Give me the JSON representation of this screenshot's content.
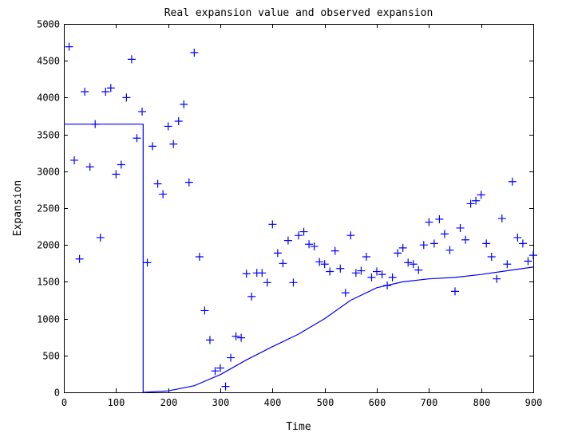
{
  "chart_data": {
    "type": "scatter",
    "title": "Real expansion value and observed expansion",
    "xlabel": "Time",
    "ylabel": "Expansion",
    "xlim": [
      0,
      900
    ],
    "ylim": [
      0,
      5000
    ],
    "x_ticks": [
      0,
      100,
      200,
      300,
      400,
      500,
      600,
      700,
      800,
      900
    ],
    "y_ticks": [
      0,
      500,
      1000,
      1500,
      2000,
      2500,
      3000,
      3500,
      4000,
      4500,
      5000
    ],
    "x_tick_labels": [
      "0",
      "100",
      "200",
      "300",
      "400",
      "500",
      "600",
      "700",
      "800",
      "900"
    ],
    "y_tick_labels": [
      "0",
      "500",
      "1000",
      "1500",
      "2000",
      "2500",
      "3000",
      "3500",
      "4000",
      "4500",
      "5000"
    ],
    "grid": false,
    "color": "#0000ff",
    "series": [
      {
        "kind": "markers",
        "marker": "plus",
        "points": [
          [
            10,
            4690
          ],
          [
            20,
            3150
          ],
          [
            30,
            1810
          ],
          [
            40,
            4080
          ],
          [
            50,
            3060
          ],
          [
            60,
            3640
          ],
          [
            70,
            2100
          ],
          [
            80,
            4080
          ],
          [
            90,
            4130
          ],
          [
            100,
            2960
          ],
          [
            110,
            3090
          ],
          [
            120,
            4000
          ],
          [
            130,
            4520
          ],
          [
            140,
            3450
          ],
          [
            150,
            3810
          ],
          [
            160,
            1760
          ],
          [
            170,
            3340
          ],
          [
            180,
            2830
          ],
          [
            190,
            2690
          ],
          [
            200,
            3610
          ],
          [
            210,
            3370
          ],
          [
            220,
            3680
          ],
          [
            230,
            3910
          ],
          [
            240,
            2850
          ],
          [
            250,
            4610
          ],
          [
            260,
            1840
          ],
          [
            270,
            1110
          ],
          [
            280,
            710
          ],
          [
            290,
            290
          ],
          [
            300,
            330
          ],
          [
            310,
            80
          ],
          [
            320,
            470
          ],
          [
            330,
            760
          ],
          [
            340,
            740
          ],
          [
            350,
            1610
          ],
          [
            360,
            1300
          ],
          [
            370,
            1620
          ],
          [
            380,
            1620
          ],
          [
            390,
            1490
          ],
          [
            400,
            2280
          ],
          [
            410,
            1890
          ],
          [
            420,
            1750
          ],
          [
            430,
            2060
          ],
          [
            440,
            1490
          ],
          [
            450,
            2130
          ],
          [
            460,
            2180
          ],
          [
            470,
            2010
          ],
          [
            480,
            1980
          ],
          [
            490,
            1770
          ],
          [
            500,
            1740
          ],
          [
            510,
            1640
          ],
          [
            520,
            1920
          ],
          [
            530,
            1680
          ],
          [
            540,
            1350
          ],
          [
            550,
            2130
          ],
          [
            560,
            1620
          ],
          [
            570,
            1650
          ],
          [
            580,
            1840
          ],
          [
            590,
            1560
          ],
          [
            600,
            1640
          ],
          [
            610,
            1600
          ],
          [
            620,
            1450
          ],
          [
            630,
            1560
          ],
          [
            640,
            1890
          ],
          [
            650,
            1960
          ],
          [
            660,
            1760
          ],
          [
            670,
            1740
          ],
          [
            680,
            1660
          ],
          [
            690,
            2000
          ],
          [
            700,
            2310
          ],
          [
            710,
            2020
          ],
          [
            720,
            2350
          ],
          [
            730,
            2150
          ],
          [
            740,
            1930
          ],
          [
            750,
            1370
          ],
          [
            760,
            2230
          ],
          [
            770,
            2070
          ],
          [
            780,
            2560
          ],
          [
            790,
            2600
          ],
          [
            800,
            2680
          ],
          [
            810,
            2020
          ],
          [
            820,
            1840
          ],
          [
            830,
            1540
          ],
          [
            840,
            2360
          ],
          [
            850,
            1740
          ],
          [
            860,
            2860
          ],
          [
            870,
            2100
          ],
          [
            880,
            2020
          ],
          [
            890,
            1780
          ],
          [
            900,
            1860
          ]
        ]
      },
      {
        "kind": "line",
        "points": [
          [
            0,
            3640
          ],
          [
            152,
            3640
          ],
          [
            152,
            0
          ],
          [
            200,
            20
          ],
          [
            250,
            90
          ],
          [
            300,
            240
          ],
          [
            350,
            440
          ],
          [
            400,
            620
          ],
          [
            450,
            790
          ],
          [
            500,
            1000
          ],
          [
            550,
            1250
          ],
          [
            600,
            1420
          ],
          [
            650,
            1500
          ],
          [
            700,
            1540
          ],
          [
            750,
            1560
          ],
          [
            800,
            1600
          ],
          [
            850,
            1650
          ],
          [
            900,
            1700
          ]
        ]
      }
    ]
  }
}
